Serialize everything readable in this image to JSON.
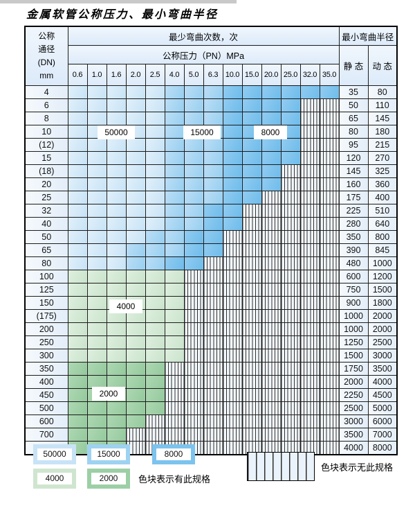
{
  "title": "金属软管公称压力、最小弯曲半径",
  "table": {
    "dn_header_lines": [
      "公称",
      "通径",
      "(DN)",
      "mm"
    ],
    "bend_cycles_header": "最少弯曲次数，次",
    "pressure_header": "公称压力（PN）MPa",
    "radius_header": "最小弯曲半径",
    "static_header": "静 态",
    "dynamic_header": "动 态",
    "pressure_columns": [
      "0.6",
      "1.0",
      "1.6",
      "2.0",
      "2.5",
      "4.0",
      "5.0",
      "6.3",
      "10.0",
      "15.0",
      "20.0",
      "25.0",
      "32.0",
      "35.0"
    ],
    "zone_meanings": {
      "b1": "50000",
      "b2": "15000",
      "b3": "8000",
      "g1": "4000",
      "g2": "2000",
      "x": "无此规格"
    },
    "zone_colors": {
      "b1": "#c9e3f6",
      "b2": "#9ed2f1",
      "b3": "#7cc3ee",
      "g1": "#cfe5cf",
      "g2": "#9ccfa5"
    },
    "rows": [
      {
        "dn": "4",
        "static": "35",
        "dynamic": "80",
        "zones": [
          "b1",
          "b1",
          "b1",
          "b1",
          "b1",
          "b2",
          "b2",
          "b2",
          "b3",
          "b3",
          "b3",
          "b3",
          "b3",
          "b3"
        ]
      },
      {
        "dn": "6",
        "static": "50",
        "dynamic": "110",
        "zones": [
          "b1",
          "b1",
          "b1",
          "b1",
          "b1",
          "b2",
          "b2",
          "b2",
          "b3",
          "b3",
          "b3",
          "b3",
          "x",
          "x"
        ]
      },
      {
        "dn": "8",
        "static": "65",
        "dynamic": "145",
        "zones": [
          "b1",
          "b1",
          "b1",
          "b1",
          "b1",
          "b2",
          "b2",
          "b2",
          "b3",
          "b3",
          "b3",
          "b3",
          "x",
          "x"
        ]
      },
      {
        "dn": "10",
        "static": "80",
        "dynamic": "180",
        "zones": [
          "b1",
          "b1",
          "b1",
          "b1",
          "b1",
          "b2",
          "b2",
          "b2",
          "b3",
          "b3",
          "b3",
          "b3",
          "x",
          "x"
        ]
      },
      {
        "dn": "(12)",
        "static": "95",
        "dynamic": "215",
        "zones": [
          "b1",
          "b1",
          "b1",
          "b1",
          "b1",
          "b2",
          "b2",
          "b2",
          "b3",
          "b3",
          "b3",
          "b3",
          "x",
          "x"
        ]
      },
      {
        "dn": "15",
        "static": "120",
        "dynamic": "270",
        "zones": [
          "b1",
          "b1",
          "b1",
          "b1",
          "b1",
          "b2",
          "b2",
          "b2",
          "b3",
          "b3",
          "b3",
          "b3",
          "x",
          "x"
        ]
      },
      {
        "dn": "(18)",
        "static": "145",
        "dynamic": "325",
        "zones": [
          "b1",
          "b1",
          "b1",
          "b1",
          "b1",
          "b2",
          "b2",
          "b2",
          "b3",
          "b3",
          "b3",
          "x",
          "x",
          "x"
        ]
      },
      {
        "dn": "20",
        "static": "160",
        "dynamic": "360",
        "zones": [
          "b1",
          "b1",
          "b1",
          "b1",
          "b1",
          "b2",
          "b2",
          "b2",
          "b3",
          "b3",
          "b3",
          "x",
          "x",
          "x"
        ]
      },
      {
        "dn": "25",
        "static": "175",
        "dynamic": "400",
        "zones": [
          "b1",
          "b1",
          "b1",
          "b1",
          "b1",
          "b2",
          "b2",
          "b2",
          "b3",
          "b3",
          "x",
          "x",
          "x",
          "x"
        ]
      },
      {
        "dn": "32",
        "static": "225",
        "dynamic": "510",
        "zones": [
          "b1",
          "b1",
          "b1",
          "b1",
          "b1",
          "b2",
          "b2",
          "b3",
          "b3",
          "x",
          "x",
          "x",
          "x",
          "x"
        ]
      },
      {
        "dn": "40",
        "static": "280",
        "dynamic": "640",
        "zones": [
          "b1",
          "b1",
          "b1",
          "b1",
          "b1",
          "b2",
          "b2",
          "b3",
          "b3",
          "x",
          "x",
          "x",
          "x",
          "x"
        ]
      },
      {
        "dn": "50",
        "static": "350",
        "dynamic": "800",
        "zones": [
          "b1",
          "b1",
          "b1",
          "b1",
          "b2",
          "b2",
          "b3",
          "b3",
          "x",
          "x",
          "x",
          "x",
          "x",
          "x"
        ]
      },
      {
        "dn": "65",
        "static": "390",
        "dynamic": "845",
        "zones": [
          "b1",
          "b1",
          "b1",
          "b2",
          "b2",
          "b2",
          "b3",
          "b3",
          "x",
          "x",
          "x",
          "x",
          "x",
          "x"
        ]
      },
      {
        "dn": "80",
        "static": "480",
        "dynamic": "1000",
        "zones": [
          "b1",
          "b1",
          "b1",
          "b2",
          "b2",
          "b3",
          "b3",
          "x",
          "x",
          "x",
          "x",
          "x",
          "x",
          "x"
        ]
      },
      {
        "dn": "100",
        "static": "600",
        "dynamic": "1200",
        "zones": [
          "g1",
          "g1",
          "g1",
          "g1",
          "g1",
          "g1",
          "x",
          "x",
          "x",
          "x",
          "x",
          "x",
          "x",
          "x"
        ]
      },
      {
        "dn": "125",
        "static": "750",
        "dynamic": "1500",
        "zones": [
          "g1",
          "g1",
          "g1",
          "g1",
          "g1",
          "g1",
          "x",
          "x",
          "x",
          "x",
          "x",
          "x",
          "x",
          "x"
        ]
      },
      {
        "dn": "150",
        "static": "900",
        "dynamic": "1800",
        "zones": [
          "g1",
          "g1",
          "g1",
          "g1",
          "g1",
          "g1",
          "x",
          "x",
          "x",
          "x",
          "x",
          "x",
          "x",
          "x"
        ]
      },
      {
        "dn": "(175)",
        "static": "1000",
        "dynamic": "2000",
        "zones": [
          "g1",
          "g1",
          "g1",
          "g1",
          "g1",
          "g1",
          "x",
          "x",
          "x",
          "x",
          "x",
          "x",
          "x",
          "x"
        ]
      },
      {
        "dn": "200",
        "static": "1000",
        "dynamic": "2000",
        "zones": [
          "g1",
          "g1",
          "g1",
          "g1",
          "g1",
          "g1",
          "x",
          "x",
          "x",
          "x",
          "x",
          "x",
          "x",
          "x"
        ]
      },
      {
        "dn": "250",
        "static": "1250",
        "dynamic": "2500",
        "zones": [
          "g1",
          "g1",
          "g1",
          "g1",
          "g1",
          "g1",
          "x",
          "x",
          "x",
          "x",
          "x",
          "x",
          "x",
          "x"
        ]
      },
      {
        "dn": "300",
        "static": "1500",
        "dynamic": "3000",
        "zones": [
          "g1",
          "g1",
          "g1",
          "g1",
          "g1",
          "g1",
          "x",
          "x",
          "x",
          "x",
          "x",
          "x",
          "x",
          "x"
        ]
      },
      {
        "dn": "350",
        "static": "1750",
        "dynamic": "3500",
        "zones": [
          "g2",
          "g2",
          "g2",
          "g2",
          "g2",
          "x",
          "x",
          "x",
          "x",
          "x",
          "x",
          "x",
          "x",
          "x"
        ]
      },
      {
        "dn": "400",
        "static": "2000",
        "dynamic": "4000",
        "zones": [
          "g2",
          "g2",
          "g2",
          "g2",
          "g2",
          "x",
          "x",
          "x",
          "x",
          "x",
          "x",
          "x",
          "x",
          "x"
        ]
      },
      {
        "dn": "450",
        "static": "2250",
        "dynamic": "4500",
        "zones": [
          "g2",
          "g2",
          "g2",
          "g2",
          "g2",
          "x",
          "x",
          "x",
          "x",
          "x",
          "x",
          "x",
          "x",
          "x"
        ]
      },
      {
        "dn": "500",
        "static": "2500",
        "dynamic": "5000",
        "zones": [
          "g2",
          "g2",
          "g2",
          "g2",
          "g2",
          "x",
          "x",
          "x",
          "x",
          "x",
          "x",
          "x",
          "x",
          "x"
        ]
      },
      {
        "dn": "600",
        "static": "3000",
        "dynamic": "6000",
        "zones": [
          "g2",
          "g2",
          "g2",
          "g2",
          "x",
          "x",
          "x",
          "x",
          "x",
          "x",
          "x",
          "x",
          "x",
          "x"
        ]
      },
      {
        "dn": "700",
        "static": "3500",
        "dynamic": "7000",
        "zones": [
          "g2",
          "g2",
          "g2",
          "x",
          "x",
          "x",
          "x",
          "x",
          "x",
          "x",
          "x",
          "x",
          "x",
          "x"
        ]
      },
      {
        "dn": "800",
        "static": "4000",
        "dynamic": "8000",
        "zones": [
          "g2",
          "g2",
          "g2",
          "x",
          "x",
          "x",
          "x",
          "x",
          "x",
          "x",
          "x",
          "x",
          "x",
          "x"
        ]
      }
    ]
  },
  "overlay_labels": [
    {
      "text": "50000",
      "zone": "b1"
    },
    {
      "text": "15000",
      "zone": "b2"
    },
    {
      "text": "8000",
      "zone": "b3"
    },
    {
      "text": "4000",
      "zone": "g1"
    },
    {
      "text": "2000",
      "zone": "g2"
    }
  ],
  "legend": {
    "cycle_swatches": [
      {
        "label": "50000",
        "zone": "b1"
      },
      {
        "label": "15000",
        "zone": "b2"
      },
      {
        "label": "8000",
        "zone": "b3"
      },
      {
        "label": "4000",
        "zone": "g1"
      },
      {
        "label": "2000",
        "zone": "g2"
      }
    ],
    "has_spec_text": "色块表示有此规格",
    "no_spec_text": "色块表示无此规格"
  }
}
